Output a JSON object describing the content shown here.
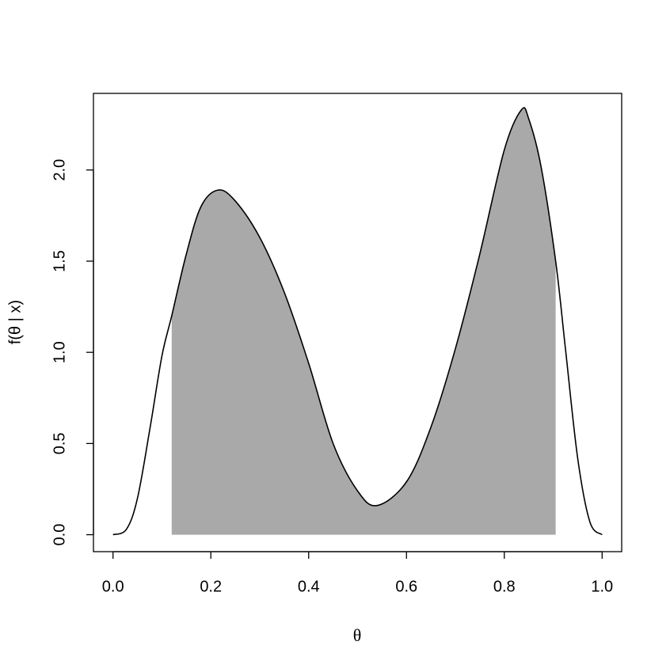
{
  "chart_data": {
    "type": "area",
    "x_label": "θ",
    "y_label": "f(θ | x)",
    "x": [
      0,
      0.0275,
      0.05,
      0.076,
      0.1,
      0.12,
      0.15,
      0.18,
      0.215,
      0.25,
      0.3,
      0.35,
      0.4,
      0.45,
      0.5,
      0.54,
      0.6,
      0.65,
      0.7,
      0.75,
      0.8,
      0.835,
      0.85,
      0.875,
      0.905,
      0.925,
      0.95,
      0.975,
      1.0
    ],
    "values": [
      0,
      0.03,
      0.2,
      0.59,
      0.98,
      1.2,
      1.54,
      1.8,
      1.89,
      1.83,
      1.63,
      1.33,
      0.94,
      0.5,
      0.24,
      0.16,
      0.29,
      0.59,
      1.02,
      1.54,
      2.11,
      2.33,
      2.28,
      2.02,
      1.5,
      1.02,
      0.42,
      0.07,
      0
    ],
    "shaded_interval": [
      0.12,
      0.905
    ],
    "line_color": "#000000",
    "fill_color": "#a9a9a9",
    "xlim": [
      -0.04,
      1.04
    ],
    "ylim": [
      -0.093,
      2.42
    ],
    "xticks": [
      {
        "value": 0,
        "label": "0.0"
      },
      {
        "value": 0.2,
        "label": "0.2"
      },
      {
        "value": 0.4,
        "label": "0.4"
      },
      {
        "value": 0.6,
        "label": "0.6"
      },
      {
        "value": 0.8,
        "label": "0.8"
      },
      {
        "value": 1,
        "label": "1.0"
      }
    ],
    "yticks": [
      {
        "value": 0,
        "label": "0.0"
      },
      {
        "value": 0.5,
        "label": "0.5"
      },
      {
        "value": 1,
        "label": "1.0"
      },
      {
        "value": 1.5,
        "label": "1.5"
      },
      {
        "value": 2,
        "label": "2.0"
      }
    ]
  }
}
